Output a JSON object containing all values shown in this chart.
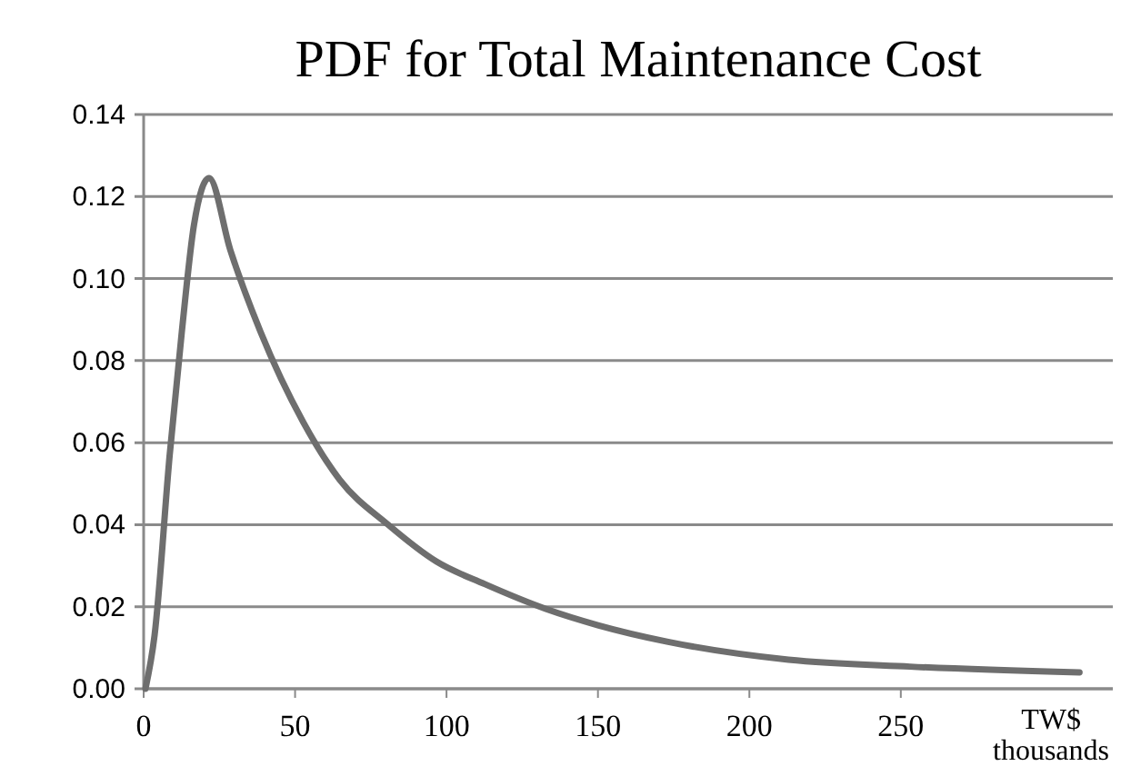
{
  "chart_data": {
    "type": "line",
    "title": "PDF for Total Maintenance Cost",
    "xlabel": "TW$ thousands",
    "xlim": [
      0,
      320
    ],
    "xticks": [
      0,
      50,
      100,
      150,
      200,
      250
    ],
    "ylim": [
      0,
      0.14
    ],
    "yticks": [
      {
        "value": 0,
        "label": "0.00"
      },
      {
        "value": 0.02,
        "label": "0.02"
      },
      {
        "value": 0.04,
        "label": "0.04"
      },
      {
        "value": 0.06,
        "label": "0.06"
      },
      {
        "value": 0.08,
        "label": "0.08"
      },
      {
        "value": 0.1,
        "label": "0.10"
      },
      {
        "value": 0.12,
        "label": "0.12"
      },
      {
        "value": 0.14,
        "label": "0.14"
      }
    ],
    "grid": "y",
    "marker": "none",
    "line_style": "solid",
    "series": [
      {
        "color": "#6e6e6e",
        "x": [
          0.6,
          3.6,
          8.6,
          12.6,
          16.6,
          21.6,
          28.6,
          38.6,
          52.7,
          64.7,
          80.7,
          96.7,
          112.7,
          132.7,
          150,
          172.8,
          212.9,
          253,
          309
        ],
        "values": [
          0,
          0.013,
          0.057,
          0.087,
          0.113,
          0.1245,
          0.107,
          0.087,
          0.065,
          0.051,
          0.04,
          0.031,
          0.0255,
          0.0195,
          0.0155,
          0.0115,
          0.0071,
          0.0054,
          0.004
        ]
      }
    ]
  }
}
